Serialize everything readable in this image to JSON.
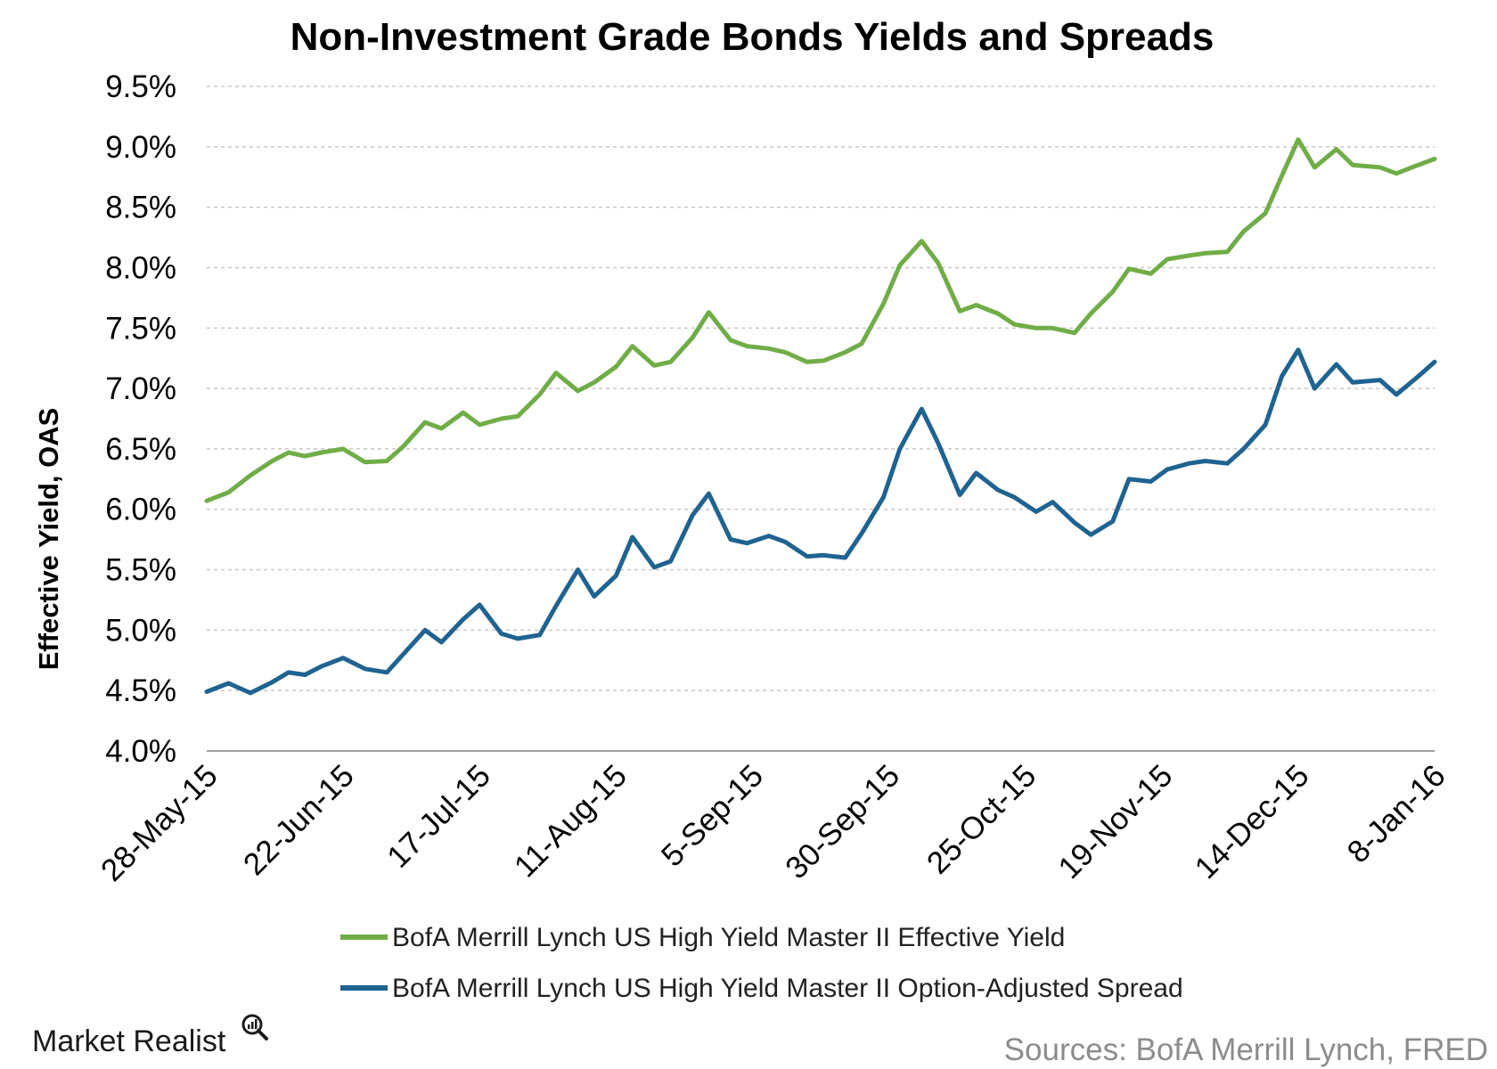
{
  "chart_data": {
    "type": "line",
    "title": "Non-Investment Grade Bonds Yields and Spreads",
    "xlabel": "",
    "ylabel": "Effective Yield, OAS",
    "ylim": [
      4.0,
      9.5
    ],
    "yticks": [
      "4.0%",
      "4.5%",
      "5.0%",
      "5.5%",
      "6.0%",
      "6.5%",
      "7.0%",
      "7.5%",
      "8.0%",
      "8.5%",
      "9.0%",
      "9.5%"
    ],
    "xticks": [
      "28-May-15",
      "22-Jun-15",
      "17-Jul-15",
      "11-Aug-15",
      "5-Sep-15",
      "30-Sep-15",
      "25-Oct-15",
      "19-Nov-15",
      "14-Dec-15",
      "8-Jan-16"
    ],
    "x": [
      "2015-05-28",
      "2015-06-01",
      "2015-06-05",
      "2015-06-09",
      "2015-06-12",
      "2015-06-15",
      "2015-06-18",
      "2015-06-22",
      "2015-06-26",
      "2015-06-30",
      "2015-07-03",
      "2015-07-07",
      "2015-07-10",
      "2015-07-14",
      "2015-07-17",
      "2015-07-21",
      "2015-07-24",
      "2015-07-28",
      "2015-07-31",
      "2015-08-04",
      "2015-08-07",
      "2015-08-11",
      "2015-08-14",
      "2015-08-18",
      "2015-08-21",
      "2015-08-25",
      "2015-08-28",
      "2015-09-01",
      "2015-09-04",
      "2015-09-08",
      "2015-09-11",
      "2015-09-15",
      "2015-09-18",
      "2015-09-22",
      "2015-09-25",
      "2015-09-29",
      "2015-10-02",
      "2015-10-06",
      "2015-10-09",
      "2015-10-13",
      "2015-10-16",
      "2015-10-20",
      "2015-10-23",
      "2015-10-27",
      "2015-10-30",
      "2015-11-03",
      "2015-11-06",
      "2015-11-10",
      "2015-11-13",
      "2015-11-17",
      "2015-11-20",
      "2015-11-24",
      "2015-11-27",
      "2015-12-01",
      "2015-12-04",
      "2015-12-08",
      "2015-12-11",
      "2015-12-14",
      "2015-12-17",
      "2015-12-21",
      "2015-12-24",
      "2015-12-29",
      "2016-01-01",
      "2016-01-05",
      "2016-01-08"
    ],
    "series": [
      {
        "name": "BofA Merrill Lynch US High Yield Master II Effective Yield",
        "color": "#70ad47",
        "values": [
          6.07,
          6.14,
          6.28,
          6.4,
          6.47,
          6.44,
          6.47,
          6.5,
          6.39,
          6.4,
          6.52,
          6.72,
          6.67,
          6.8,
          6.7,
          6.75,
          6.77,
          6.95,
          7.13,
          6.98,
          7.05,
          7.18,
          7.35,
          7.19,
          7.22,
          7.42,
          7.63,
          7.4,
          7.35,
          7.33,
          7.3,
          7.22,
          7.23,
          7.3,
          7.37,
          7.7,
          8.02,
          8.22,
          8.04,
          7.64,
          7.69,
          7.62,
          7.53,
          7.5,
          7.5,
          7.46,
          7.62,
          7.8,
          7.99,
          7.95,
          8.07,
          8.1,
          8.12,
          8.13,
          8.3,
          8.45,
          8.76,
          9.06,
          8.83,
          8.98,
          8.85,
          8.83,
          8.78,
          8.85,
          8.9
        ]
      },
      {
        "name": "BofA Merrill Lynch US High Yield Master II Option-Adjusted Spread",
        "color": "#1f6391",
        "values": [
          4.49,
          4.56,
          4.48,
          4.57,
          4.65,
          4.63,
          4.7,
          4.77,
          4.68,
          4.65,
          4.8,
          5.0,
          4.9,
          5.09,
          5.21,
          4.97,
          4.93,
          4.96,
          5.2,
          5.5,
          5.28,
          5.45,
          5.77,
          5.52,
          5.57,
          5.95,
          6.13,
          5.75,
          5.72,
          5.78,
          5.73,
          5.61,
          5.62,
          5.6,
          5.8,
          6.1,
          6.5,
          6.83,
          6.55,
          6.12,
          6.3,
          6.16,
          6.1,
          5.98,
          6.06,
          5.89,
          5.79,
          5.9,
          6.25,
          6.23,
          6.33,
          6.38,
          6.4,
          6.38,
          6.5,
          6.7,
          7.1,
          7.32,
          7.0,
          7.2,
          7.05,
          7.07,
          6.95,
          7.1,
          7.22
        ]
      }
    ],
    "legend_placement": "bottom",
    "grid": true
  },
  "branding": {
    "logo_text": "Market Realist",
    "source_text": "Sources: BofA Merrill Lynch, FRED"
  }
}
